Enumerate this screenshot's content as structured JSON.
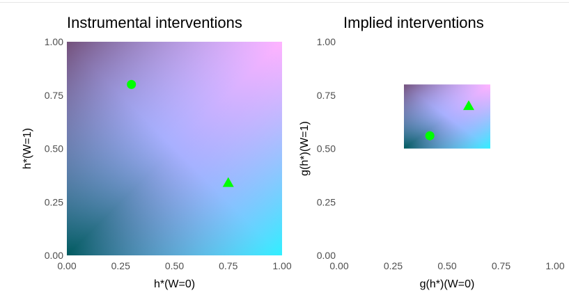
{
  "colors": {
    "marker": "#00ff00",
    "gradient": {
      "bottom_left": "#005a5f",
      "bottom_right": "#22f7ff",
      "top_left": "#6a3f62",
      "top_right": "#ffb3ff",
      "center": "#a8b0ff"
    }
  },
  "chart_data": [
    {
      "type": "heatmap",
      "title": "Instrumental interventions",
      "xlabel": "h*(W=0)",
      "ylabel": "h*(W=1)",
      "xlim": [
        0,
        1
      ],
      "ylim": [
        0,
        1
      ],
      "xticks": [
        "0.00",
        "0.25",
        "0.50",
        "0.75",
        "1.00"
      ],
      "yticks": [
        "0.00",
        "0.25",
        "0.50",
        "0.75",
        "1.00"
      ],
      "grid": false,
      "region": {
        "x": [
          0,
          1
        ],
        "y": [
          0,
          1
        ]
      },
      "points": [
        {
          "shape": "circle",
          "x": 0.3,
          "y": 0.8
        },
        {
          "shape": "triangle",
          "x": 0.75,
          "y": 0.34
        }
      ]
    },
    {
      "type": "heatmap",
      "title": "Implied interventions",
      "xlabel": "g(h*)(W=0)",
      "ylabel": "g(h*)(W=1)",
      "xlim": [
        0,
        1
      ],
      "ylim": [
        0,
        1
      ],
      "xticks": [
        "0.00",
        "0.25",
        "0.50",
        "0.75",
        "1.00"
      ],
      "yticks": [
        "0.00",
        "0.25",
        "0.50",
        "0.75",
        "1.00"
      ],
      "grid": false,
      "region": {
        "x": [
          0.3,
          0.7
        ],
        "y": [
          0.5,
          0.8
        ]
      },
      "points": [
        {
          "shape": "circle",
          "x": 0.42,
          "y": 0.56
        },
        {
          "shape": "triangle",
          "x": 0.6,
          "y": 0.7
        }
      ]
    }
  ]
}
